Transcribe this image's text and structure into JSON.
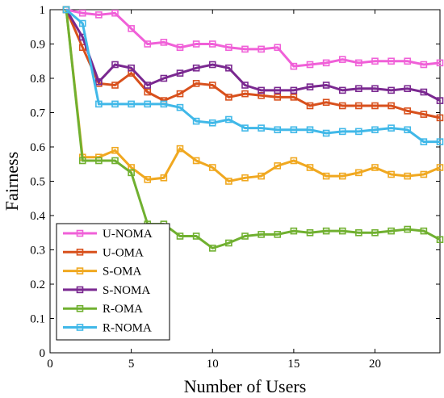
{
  "chart_data": {
    "type": "line",
    "title": "",
    "xlabel": "Number of Users",
    "ylabel": "Fairness",
    "xlim": [
      0,
      24
    ],
    "ylim": [
      0,
      1
    ],
    "xticks": [
      0,
      5,
      10,
      15,
      20
    ],
    "yticks": [
      0,
      0.1,
      0.2,
      0.3,
      0.4,
      0.5,
      0.6,
      0.7,
      0.8,
      0.9,
      1
    ],
    "grid": false,
    "legend_position": "bottom-left",
    "x": [
      1,
      2,
      3,
      4,
      5,
      6,
      7,
      8,
      9,
      10,
      11,
      12,
      13,
      14,
      15,
      16,
      17,
      18,
      19,
      20,
      21,
      22,
      23,
      24
    ],
    "series": [
      {
        "name": "U-NOMA",
        "color": "#f060d8",
        "values": [
          1.0,
          0.99,
          0.985,
          0.99,
          0.945,
          0.9,
          0.905,
          0.89,
          0.9,
          0.9,
          0.89,
          0.885,
          0.885,
          0.89,
          0.835,
          0.84,
          0.845,
          0.855,
          0.845,
          0.85,
          0.85,
          0.85,
          0.84,
          0.845
        ]
      },
      {
        "name": "U-OMA",
        "color": "#d8501c",
        "values": [
          1.0,
          0.89,
          0.785,
          0.78,
          0.815,
          0.76,
          0.735,
          0.755,
          0.785,
          0.78,
          0.745,
          0.755,
          0.75,
          0.745,
          0.745,
          0.72,
          0.73,
          0.72,
          0.72,
          0.72,
          0.72,
          0.705,
          0.695,
          0.685
        ]
      },
      {
        "name": "S-OMA",
        "color": "#f0a820",
        "values": [
          1.0,
          0.57,
          0.57,
          0.59,
          0.54,
          0.505,
          0.51,
          0.595,
          0.56,
          0.54,
          0.5,
          0.51,
          0.515,
          0.545,
          0.56,
          0.54,
          0.515,
          0.515,
          0.525,
          0.54,
          0.52,
          0.515,
          0.52,
          0.54
        ]
      },
      {
        "name": "S-NOMA",
        "color": "#7a2890",
        "values": [
          1.0,
          0.92,
          0.79,
          0.84,
          0.83,
          0.78,
          0.8,
          0.815,
          0.83,
          0.84,
          0.83,
          0.78,
          0.765,
          0.765,
          0.765,
          0.775,
          0.78,
          0.765,
          0.77,
          0.77,
          0.765,
          0.77,
          0.76,
          0.735
        ]
      },
      {
        "name": "R-OMA",
        "color": "#70b030",
        "values": [
          1.0,
          0.56,
          0.56,
          0.56,
          0.525,
          0.375,
          0.375,
          0.34,
          0.34,
          0.305,
          0.32,
          0.34,
          0.345,
          0.345,
          0.355,
          0.35,
          0.355,
          0.355,
          0.35,
          0.35,
          0.355,
          0.36,
          0.355,
          0.33
        ]
      },
      {
        "name": "R-NOMA",
        "color": "#40b8e8",
        "values": [
          1.0,
          0.96,
          0.725,
          0.725,
          0.725,
          0.725,
          0.725,
          0.715,
          0.675,
          0.67,
          0.68,
          0.655,
          0.655,
          0.65,
          0.65,
          0.65,
          0.64,
          0.645,
          0.645,
          0.65,
          0.655,
          0.65,
          0.615,
          0.615
        ]
      }
    ]
  }
}
